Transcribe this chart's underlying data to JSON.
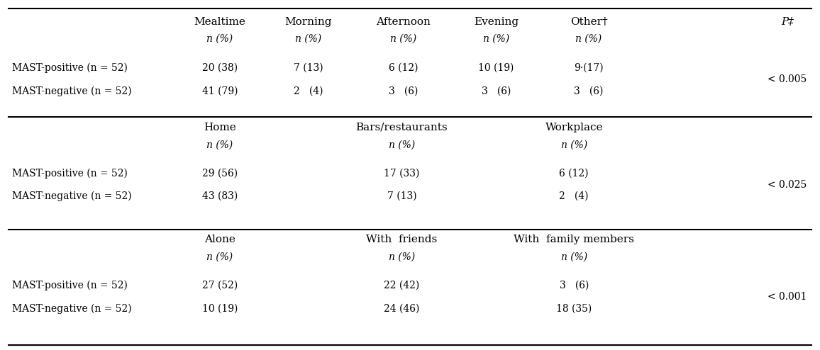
{
  "background_color": "#ffffff",
  "section1": {
    "headers_line1": [
      "Mealtime",
      "Morning",
      "Afternoon",
      "Evening",
      "Other†",
      "P‡"
    ],
    "headers_line2": [
      "n (%)",
      "n (%)",
      "n (%)",
      "n (%)",
      "n (%)",
      ""
    ],
    "row_labels": [
      "MAST-positive (n = 52)",
      "MAST-negative (n = 52)"
    ],
    "data": [
      [
        "20 (38)",
        "7 (13)",
        "6 (12)",
        "10 (19)",
        "9·(17)",
        "< 0.005"
      ],
      [
        "41 (79)",
        "2   (4)",
        "3   (6)",
        "3   (6)",
        "3   (6)",
        ""
      ]
    ]
  },
  "section2": {
    "headers_line1": [
      "Home",
      "Bars/restaurants",
      "Workplace"
    ],
    "headers_line2": [
      "n (%)",
      "n (%)",
      "n (%)"
    ],
    "row_labels": [
      "MAST-positive (n = 52)",
      "MAST-negative (n = 52)"
    ],
    "data": [
      [
        "29 (56)",
        "17 (33)",
        "6 (12)",
        "< 0.025"
      ],
      [
        "43 (83)",
        "7 (13)",
        "2   (4)",
        ""
      ]
    ]
  },
  "section3": {
    "headers_line1": [
      "Alone",
      "With  friends",
      "With  family members"
    ],
    "headers_line2": [
      "n (%)",
      "n (%)",
      "n (%)"
    ],
    "row_labels": [
      "MAST-positive (n = 52)",
      "MAST-negative (n = 52)"
    ],
    "data": [
      [
        "27 (52)",
        "22 (42)",
        "3   (6)",
        "< 0.001"
      ],
      [
        "10 (19)",
        "24 (46)",
        "18 (35)",
        ""
      ]
    ]
  },
  "font_size": 11,
  "small_font_size": 10,
  "row_label_italic_n": true
}
